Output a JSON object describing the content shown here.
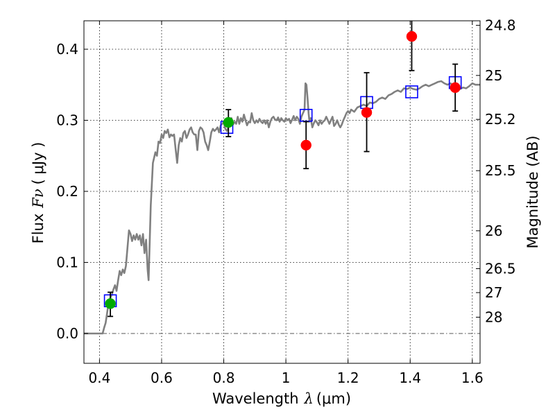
{
  "chart_data": {
    "type": "scatter",
    "title": "",
    "xlabel": "Wavelength",
    "xlabel_symbol": "λ",
    "xlabel_unit": "(μm)",
    "ylabel": "Flux",
    "ylabel_symbol": "Fν",
    "ylabel_unit": "( μJy )",
    "y2label": "Magnitude (AB)",
    "xlim": [
      0.35,
      1.625
    ],
    "ylim": [
      -0.042,
      0.44
    ],
    "grid": true,
    "grid_style": "dotted",
    "x_ticks": [
      0.4,
      0.6,
      0.8,
      1.0,
      1.2,
      1.4,
      1.6
    ],
    "x_tick_labels": [
      "0.4",
      "0.6",
      "0.8",
      "1",
      "1.2",
      "1.4",
      "1.6"
    ],
    "y_ticks": [
      0.0,
      0.1,
      0.2,
      0.3,
      0.4
    ],
    "y_tick_labels": [
      "0.0",
      "0.1",
      "0.2",
      "0.3",
      "0.4"
    ],
    "y2_ticks": [
      {
        "label": "24.8",
        "flux": 0.4337
      },
      {
        "label": "25",
        "flux": 0.3631
      },
      {
        "label": "25.2",
        "flux": 0.3013
      },
      {
        "label": "25.5",
        "flux": 0.2291
      },
      {
        "label": "26",
        "flux": 0.1445
      },
      {
        "label": "26.5",
        "flux": 0.0912
      },
      {
        "label": "27",
        "flux": 0.0575
      },
      {
        "label": "28",
        "flux": 0.0229
      }
    ],
    "zero_line": {
      "y": 0.0,
      "style": "dashdot",
      "color": "#555555"
    },
    "series": [
      {
        "type": "line",
        "color": "#808080",
        "points": [
          [
            0.35,
            0.0
          ],
          [
            0.4,
            0.0
          ],
          [
            0.41,
            0.0
          ],
          [
            0.415,
            0.008
          ],
          [
            0.42,
            0.015
          ],
          [
            0.425,
            0.03
          ],
          [
            0.43,
            0.045
          ],
          [
            0.435,
            0.05
          ],
          [
            0.44,
            0.055
          ],
          [
            0.445,
            0.062
          ],
          [
            0.45,
            0.068
          ],
          [
            0.455,
            0.06
          ],
          [
            0.46,
            0.075
          ],
          [
            0.465,
            0.088
          ],
          [
            0.47,
            0.082
          ],
          [
            0.475,
            0.09
          ],
          [
            0.48,
            0.085
          ],
          [
            0.485,
            0.095
          ],
          [
            0.49,
            0.12
          ],
          [
            0.495,
            0.145
          ],
          [
            0.5,
            0.14
          ],
          [
            0.505,
            0.13
          ],
          [
            0.51,
            0.138
          ],
          [
            0.515,
            0.132
          ],
          [
            0.52,
            0.14
          ],
          [
            0.525,
            0.132
          ],
          [
            0.53,
            0.138
          ],
          [
            0.535,
            0.124
          ],
          [
            0.54,
            0.14
          ],
          [
            0.545,
            0.113
          ],
          [
            0.55,
            0.132
          ],
          [
            0.555,
            0.09
          ],
          [
            0.558,
            0.075
          ],
          [
            0.565,
            0.18
          ],
          [
            0.572,
            0.24
          ],
          [
            0.58,
            0.255
          ],
          [
            0.585,
            0.25
          ],
          [
            0.59,
            0.27
          ],
          [
            0.595,
            0.268
          ],
          [
            0.6,
            0.28
          ],
          [
            0.605,
            0.275
          ],
          [
            0.61,
            0.285
          ],
          [
            0.615,
            0.282
          ],
          [
            0.62,
            0.287
          ],
          [
            0.625,
            0.276
          ],
          [
            0.63,
            0.28
          ],
          [
            0.635,
            0.278
          ],
          [
            0.64,
            0.28
          ],
          [
            0.645,
            0.26
          ],
          [
            0.65,
            0.24
          ],
          [
            0.655,
            0.265
          ],
          [
            0.66,
            0.275
          ],
          [
            0.665,
            0.27
          ],
          [
            0.67,
            0.282
          ],
          [
            0.675,
            0.285
          ],
          [
            0.68,
            0.275
          ],
          [
            0.685,
            0.28
          ],
          [
            0.69,
            0.287
          ],
          [
            0.695,
            0.29
          ],
          [
            0.7,
            0.283
          ],
          [
            0.705,
            0.28
          ],
          [
            0.71,
            0.28
          ],
          [
            0.715,
            0.258
          ],
          [
            0.72,
            0.285
          ],
          [
            0.725,
            0.29
          ],
          [
            0.73,
            0.288
          ],
          [
            0.735,
            0.283
          ],
          [
            0.74,
            0.27
          ],
          [
            0.745,
            0.265
          ],
          [
            0.75,
            0.258
          ],
          [
            0.755,
            0.27
          ],
          [
            0.76,
            0.283
          ],
          [
            0.765,
            0.288
          ],
          [
            0.77,
            0.285
          ],
          [
            0.775,
            0.287
          ],
          [
            0.78,
            0.29
          ],
          [
            0.785,
            0.283
          ],
          [
            0.79,
            0.293
          ],
          [
            0.8,
            0.297
          ],
          [
            0.805,
            0.288
          ],
          [
            0.81,
            0.285
          ],
          [
            0.815,
            0.29
          ],
          [
            0.82,
            0.3
          ],
          [
            0.825,
            0.303
          ],
          [
            0.83,
            0.294
          ],
          [
            0.835,
            0.298
          ],
          [
            0.84,
            0.295
          ],
          [
            0.845,
            0.305
          ],
          [
            0.85,
            0.295
          ],
          [
            0.855,
            0.303
          ],
          [
            0.86,
            0.298
          ],
          [
            0.865,
            0.308
          ],
          [
            0.87,
            0.3
          ],
          [
            0.875,
            0.293
          ],
          [
            0.88,
            0.298
          ],
          [
            0.885,
            0.297
          ],
          [
            0.89,
            0.31
          ],
          [
            0.895,
            0.3
          ],
          [
            0.9,
            0.296
          ],
          [
            0.905,
            0.3
          ],
          [
            0.91,
            0.297
          ],
          [
            0.915,
            0.302
          ],
          [
            0.92,
            0.298
          ],
          [
            0.925,
            0.296
          ],
          [
            0.93,
            0.3
          ],
          [
            0.935,
            0.295
          ],
          [
            0.94,
            0.3
          ],
          [
            0.945,
            0.29
          ],
          [
            0.95,
            0.298
          ],
          [
            0.955,
            0.303
          ],
          [
            0.96,
            0.305
          ],
          [
            0.965,
            0.301
          ],
          [
            0.97,
            0.3
          ],
          [
            0.975,
            0.304
          ],
          [
            0.98,
            0.298
          ],
          [
            0.985,
            0.303
          ],
          [
            0.99,
            0.3
          ],
          [
            0.995,
            0.298
          ],
          [
            1.0,
            0.303
          ],
          [
            1.005,
            0.3
          ],
          [
            1.01,
            0.302
          ],
          [
            1.015,
            0.296
          ],
          [
            1.02,
            0.301
          ],
          [
            1.025,
            0.306
          ],
          [
            1.03,
            0.3
          ],
          [
            1.035,
            0.305
          ],
          [
            1.04,
            0.302
          ],
          [
            1.045,
            0.295
          ],
          [
            1.05,
            0.305
          ],
          [
            1.055,
            0.31
          ],
          [
            1.06,
            0.315
          ],
          [
            1.063,
            0.352
          ],
          [
            1.066,
            0.35
          ],
          [
            1.07,
            0.33
          ],
          [
            1.073,
            0.31
          ],
          [
            1.076,
            0.298
          ],
          [
            1.08,
            0.303
          ],
          [
            1.085,
            0.29
          ],
          [
            1.09,
            0.296
          ],
          [
            1.095,
            0.3
          ],
          [
            1.1,
            0.297
          ],
          [
            1.105,
            0.293
          ],
          [
            1.11,
            0.3
          ],
          [
            1.115,
            0.295
          ],
          [
            1.12,
            0.298
          ],
          [
            1.125,
            0.3
          ],
          [
            1.13,
            0.305
          ],
          [
            1.135,
            0.3
          ],
          [
            1.14,
            0.295
          ],
          [
            1.145,
            0.3
          ],
          [
            1.15,
            0.305
          ],
          [
            1.155,
            0.292
          ],
          [
            1.16,
            0.295
          ],
          [
            1.165,
            0.3
          ],
          [
            1.17,
            0.294
          ],
          [
            1.175,
            0.29
          ],
          [
            1.18,
            0.294
          ],
          [
            1.185,
            0.3
          ],
          [
            1.19,
            0.305
          ],
          [
            1.195,
            0.31
          ],
          [
            1.2,
            0.313
          ],
          [
            1.205,
            0.31
          ],
          [
            1.21,
            0.315
          ],
          [
            1.22,
            0.312
          ],
          [
            1.23,
            0.318
          ],
          [
            1.24,
            0.32
          ],
          [
            1.25,
            0.322
          ],
          [
            1.26,
            0.32
          ],
          [
            1.27,
            0.325
          ],
          [
            1.28,
            0.324
          ],
          [
            1.29,
            0.326
          ],
          [
            1.3,
            0.33
          ],
          [
            1.31,
            0.332
          ],
          [
            1.32,
            0.33
          ],
          [
            1.33,
            0.335
          ],
          [
            1.34,
            0.337
          ],
          [
            1.35,
            0.34
          ],
          [
            1.36,
            0.342
          ],
          [
            1.37,
            0.34
          ],
          [
            1.38,
            0.345
          ],
          [
            1.39,
            0.344
          ],
          [
            1.4,
            0.346
          ],
          [
            1.41,
            0.344
          ],
          [
            1.42,
            0.343
          ],
          [
            1.43,
            0.345
          ],
          [
            1.44,
            0.348
          ],
          [
            1.45,
            0.35
          ],
          [
            1.46,
            0.348
          ],
          [
            1.47,
            0.35
          ],
          [
            1.48,
            0.352
          ],
          [
            1.49,
            0.354
          ],
          [
            1.5,
            0.355
          ],
          [
            1.51,
            0.352
          ],
          [
            1.52,
            0.35
          ],
          [
            1.53,
            0.352
          ],
          [
            1.54,
            0.348
          ],
          [
            1.55,
            0.35
          ],
          [
            1.56,
            0.344
          ],
          [
            1.57,
            0.346
          ],
          [
            1.58,
            0.345
          ],
          [
            1.59,
            0.348
          ],
          [
            1.6,
            0.352
          ],
          [
            1.61,
            0.35
          ],
          [
            1.625,
            0.35
          ]
        ]
      },
      {
        "type": "squares",
        "color": "#0000ff",
        "points": [
          [
            0.435,
            0.046
          ],
          [
            0.81,
            0.29
          ],
          [
            1.065,
            0.307
          ],
          [
            1.26,
            0.325
          ],
          [
            1.405,
            0.34
          ],
          [
            1.545,
            0.353
          ]
        ]
      },
      {
        "type": "points",
        "color": "#00aa00",
        "points": [
          {
            "x": 0.435,
            "y": 0.042,
            "ylo": 0.024,
            "yhi": 0.058
          },
          {
            "x": 0.815,
            "y": 0.297,
            "ylo": 0.277,
            "yhi": 0.315
          }
        ]
      },
      {
        "type": "points",
        "color": "#ff0000",
        "points": [
          {
            "x": 1.065,
            "y": 0.265,
            "ylo": 0.232,
            "yhi": 0.298
          },
          {
            "x": 1.26,
            "y": 0.311,
            "ylo": 0.256,
            "yhi": 0.367
          },
          {
            "x": 1.405,
            "y": 0.418,
            "ylo": 0.37,
            "yhi": 0.44
          },
          {
            "x": 1.545,
            "y": 0.346,
            "ylo": 0.313,
            "yhi": 0.379
          }
        ]
      }
    ]
  }
}
